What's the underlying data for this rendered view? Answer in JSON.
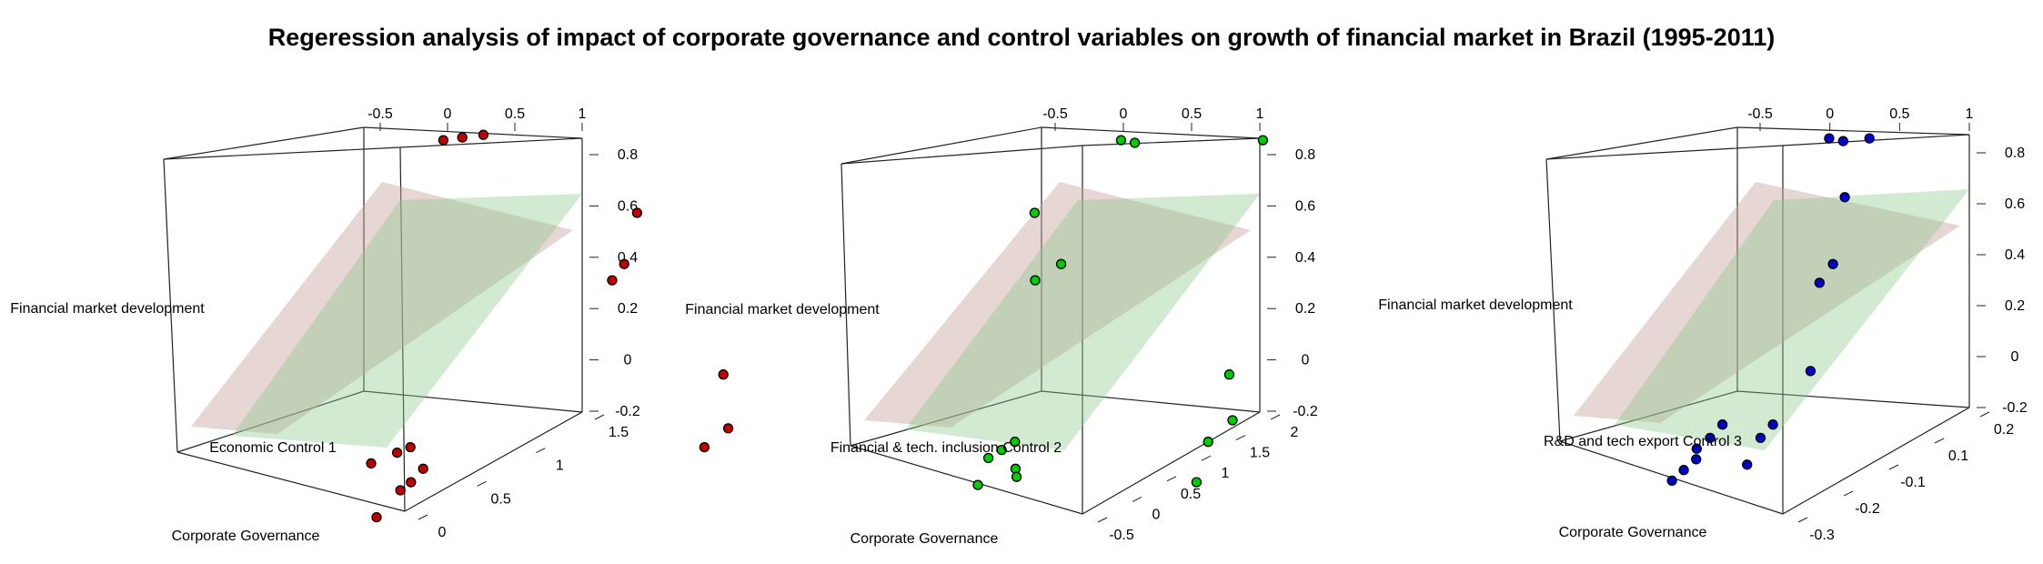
{
  "title": "Regeression analysis of impact of corporate governance and control variables on growth of financial market in Brazil (1995-2011)",
  "chart_data": [
    {
      "type": "scatter3d",
      "color": "#c00000",
      "xlabel": "Corporate Governance",
      "ylabel": "Economic Control 1",
      "zlabel": "Financial market development",
      "x_ticks": [
        0,
        0.5,
        1,
        1.5
      ],
      "y_ticks": [
        -0.5,
        0,
        0.5,
        1
      ],
      "z_ticks": [
        0.8,
        0.6,
        0.4,
        0.2,
        0,
        -0.2
      ],
      "points": [
        {
          "x": -0.55,
          "y": 0.55,
          "z": 0.82
        },
        {
          "x": -0.45,
          "y": 0.62,
          "z": 0.83
        },
        {
          "x": -0.38,
          "y": 0.7,
          "z": 0.84
        },
        {
          "x": -0.3,
          "y": 1.3,
          "z": 0.55
        },
        {
          "x": -0.32,
          "y": 1.25,
          "z": 0.36
        },
        {
          "x": -0.25,
          "y": 1.2,
          "z": 0.3
        },
        {
          "x": 0.6,
          "y": 1.6,
          "z": -0.05
        },
        {
          "x": 1.05,
          "y": 1.6,
          "z": -0.25
        },
        {
          "x": 1.2,
          "y": 1.5,
          "z": -0.32
        },
        {
          "x": 1.1,
          "y": 0.4,
          "z": -0.4
        },
        {
          "x": 1.1,
          "y": 0.35,
          "z": -0.32
        },
        {
          "x": 1.05,
          "y": 0.3,
          "z": -0.34
        },
        {
          "x": 1.0,
          "y": 0.2,
          "z": -0.38
        },
        {
          "x": 1.15,
          "y": 0.35,
          "z": -0.45
        },
        {
          "x": 1.35,
          "y": 0.3,
          "z": -0.48
        },
        {
          "x": 1.5,
          "y": 0.2,
          "z": -0.58
        }
      ],
      "plane_colors": [
        "#c8a5a0",
        "#8fc88f"
      ]
    },
    {
      "type": "scatter3d",
      "color": "#00cc00",
      "xlabel": "Corporate Governance",
      "ylabel": "Financial & tech. inclusion Control 2",
      "zlabel": "Financial market development",
      "x_ticks": [
        -0.5,
        0,
        0.5,
        1,
        1.5,
        2
      ],
      "y_ticks": [
        -0.5,
        0,
        0.5,
        1
      ],
      "z_ticks": [
        0.8,
        0.6,
        0.4,
        0.2,
        0,
        -0.2
      ],
      "points": [
        {
          "x": -0.55,
          "y": 0.55,
          "z": 0.82
        },
        {
          "x": -0.45,
          "y": 0.6,
          "z": 0.81
        },
        {
          "x": -0.38,
          "y": 1.1,
          "z": 0.82
        },
        {
          "x": -0.3,
          "y": 0.2,
          "z": 0.55
        },
        {
          "x": -0.2,
          "y": 0.3,
          "z": 0.36
        },
        {
          "x": -0.25,
          "y": 0.2,
          "z": 0.3
        },
        {
          "x": 1.2,
          "y": 0.9,
          "z": -0.05
        },
        {
          "x": 1.5,
          "y": 0.9,
          "z": -0.22
        },
        {
          "x": 1.6,
          "y": 0.8,
          "z": -0.3
        },
        {
          "x": 1.7,
          "y": 0.75,
          "z": -0.45
        },
        {
          "x": 1.4,
          "y": 0.05,
          "z": -0.3
        },
        {
          "x": 1.35,
          "y": 0.0,
          "z": -0.33
        },
        {
          "x": 1.3,
          "y": -0.05,
          "z": -0.36
        },
        {
          "x": 1.45,
          "y": 0.05,
          "z": -0.4
        },
        {
          "x": 1.55,
          "y": 0.05,
          "z": -0.43
        },
        {
          "x": 1.5,
          "y": -0.1,
          "z": -0.46
        }
      ],
      "plane_colors": [
        "#c8a5a0",
        "#8fc88f"
      ]
    },
    {
      "type": "scatter3d",
      "color": "#0000cc",
      "xlabel": "Corporate Governance",
      "ylabel": "R&D and tech export Control 3",
      "zlabel": "Financial market development",
      "x_ticks": [
        -0.3,
        -0.2,
        -0.1,
        0.1,
        0.2
      ],
      "y_ticks": [
        -0.5,
        0,
        0.5,
        1
      ],
      "z_ticks": [
        0.8,
        0.6,
        0.4,
        0.2,
        0,
        -0.2
      ],
      "points": [
        {
          "x": -0.55,
          "y": 0.55,
          "z": 0.82
        },
        {
          "x": -0.45,
          "y": 0.6,
          "z": 0.81
        },
        {
          "x": -0.4,
          "y": 0.7,
          "z": 0.82
        },
        {
          "x": -0.3,
          "y": 0.6,
          "z": 0.6
        },
        {
          "x": -0.2,
          "y": 0.55,
          "z": 0.35
        },
        {
          "x": -0.25,
          "y": 0.5,
          "z": 0.28
        },
        {
          "x": 0.1,
          "y": 0.45,
          "z": -0.05
        },
        {
          "x": 0.2,
          "y": 0.3,
          "z": -0.25
        },
        {
          "x": 0.25,
          "y": 0.25,
          "z": -0.3
        },
        {
          "x": 0.2,
          "y": 0.2,
          "z": -0.4
        },
        {
          "x": 0.3,
          "y": 0.1,
          "z": -0.25
        },
        {
          "x": 0.35,
          "y": 0.05,
          "z": -0.3
        },
        {
          "x": 0.3,
          "y": 0.0,
          "z": -0.34
        },
        {
          "x": 0.25,
          "y": 0.0,
          "z": -0.38
        },
        {
          "x": 0.3,
          "y": -0.05,
          "z": -0.42
        },
        {
          "x": 0.4,
          "y": -0.1,
          "z": -0.46
        }
      ],
      "plane_colors": [
        "#c8a5a0",
        "#8fc88f"
      ]
    }
  ]
}
